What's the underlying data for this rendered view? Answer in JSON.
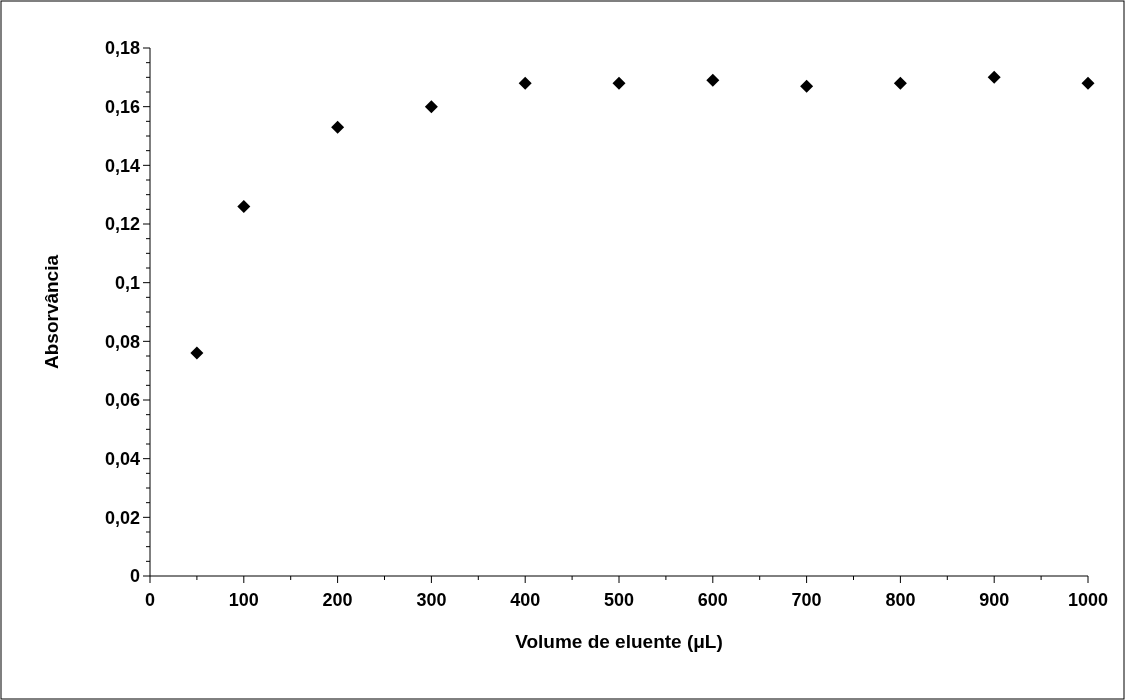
{
  "chart_data": {
    "type": "scatter",
    "xlabel": "Volume de eluente (μL)",
    "ylabel": "Absorvância",
    "x": [
      50,
      100,
      200,
      300,
      400,
      500,
      600,
      700,
      800,
      900,
      1000
    ],
    "series": [
      {
        "color": "#000000",
        "values": [
          0.076,
          0.126,
          0.153,
          0.16,
          0.168,
          0.168,
          0.169,
          0.167,
          0.168,
          0.17,
          0.168
        ]
      }
    ],
    "marker": "diamond",
    "xlim": [
      0,
      1000
    ],
    "ylim": [
      0,
      0.18
    ],
    "xticks": [
      0,
      {
        "value": 50,
        "label": null
      },
      100,
      {
        "value": 150,
        "label": null
      },
      200,
      {
        "value": 250,
        "label": null
      },
      300,
      {
        "value": 350,
        "label": null
      },
      400,
      {
        "value": 450,
        "label": null
      },
      500,
      {
        "value": 550,
        "label": null
      },
      600,
      {
        "value": 650,
        "label": null
      },
      700,
      {
        "value": 750,
        "label": null
      },
      800,
      {
        "value": 850,
        "label": null
      },
      900,
      {
        "value": 950,
        "label": null
      },
      1000
    ],
    "yticks": [
      {
        "value": 0,
        "label": "0"
      },
      {
        "value": 0.005,
        "label": null
      },
      {
        "value": 0.01,
        "label": null
      },
      {
        "value": 0.015,
        "label": null
      },
      {
        "value": 0.02,
        "label": "0,02"
      },
      {
        "value": 0.025,
        "label": null
      },
      {
        "value": 0.03,
        "label": null
      },
      {
        "value": 0.035,
        "label": null
      },
      {
        "value": 0.04,
        "label": "0,04"
      },
      {
        "value": 0.045,
        "label": null
      },
      {
        "value": 0.05,
        "label": null
      },
      {
        "value": 0.055,
        "label": null
      },
      {
        "value": 0.06,
        "label": "0,06"
      },
      {
        "value": 0.065,
        "label": null
      },
      {
        "value": 0.07,
        "label": null
      },
      {
        "value": 0.075,
        "label": null
      },
      {
        "value": 0.08,
        "label": "0,08"
      },
      {
        "value": 0.085,
        "label": null
      },
      {
        "value": 0.09,
        "label": null
      },
      {
        "value": 0.095,
        "label": null
      },
      {
        "value": 0.1,
        "label": "0,1"
      },
      {
        "value": 0.105,
        "label": null
      },
      {
        "value": 0.11,
        "label": null
      },
      {
        "value": 0.115,
        "label": null
      },
      {
        "value": 0.12,
        "label": "0,12"
      },
      {
        "value": 0.125,
        "label": null
      },
      {
        "value": 0.13,
        "label": null
      },
      {
        "value": 0.135,
        "label": null
      },
      {
        "value": 0.14,
        "label": "0,14"
      },
      {
        "value": 0.145,
        "label": null
      },
      {
        "value": 0.15,
        "label": null
      },
      {
        "value": 0.155,
        "label": null
      },
      {
        "value": 0.16,
        "label": "0,16"
      },
      {
        "value": 0.165,
        "label": null
      },
      {
        "value": 0.17,
        "label": null
      },
      {
        "value": 0.175,
        "label": null
      },
      {
        "value": 0.18,
        "label": "0,18"
      }
    ]
  }
}
